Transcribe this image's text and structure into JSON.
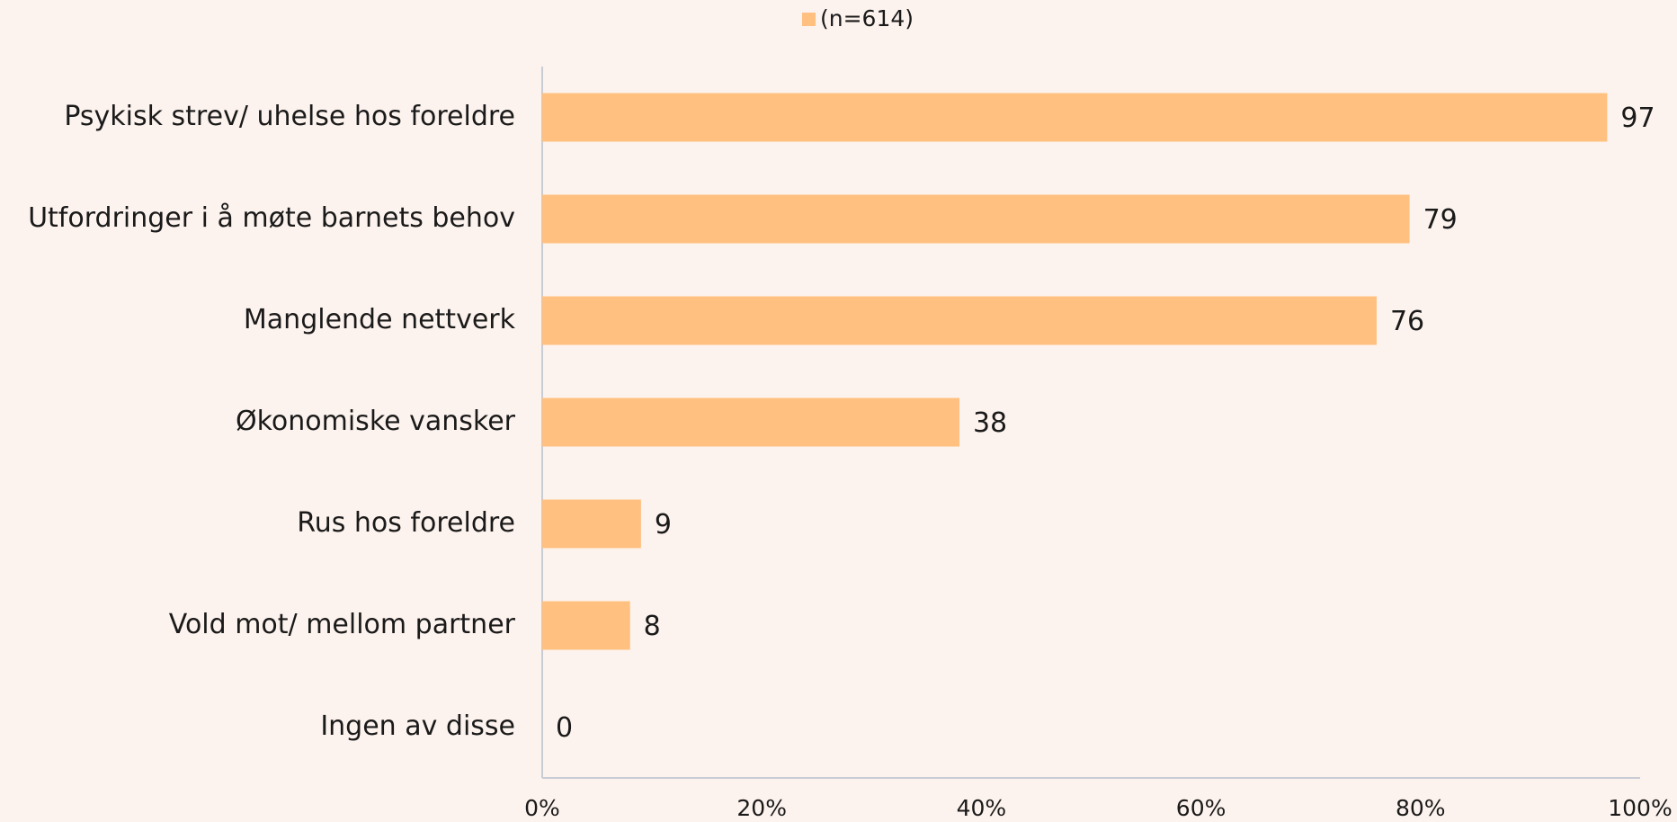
{
  "chart_data": {
    "type": "bar",
    "orientation": "horizontal",
    "categories": [
      "Psykisk strev/ uhelse hos foreldre",
      "Utfordringer i å møte barnets behov",
      "Manglende nettverk",
      "Økonomiske vansker",
      "Rus hos foreldre",
      "Vold mot/ mellom partner",
      "Ingen av disse"
    ],
    "series": [
      {
        "name": "(n=614)",
        "color": "#ffc080",
        "values": [
          97,
          79,
          76,
          38,
          9,
          8,
          0
        ]
      }
    ],
    "xlim": [
      0,
      100
    ],
    "xticks": [
      {
        "value": 0,
        "label": "0%"
      },
      {
        "value": 20,
        "label": "20%"
      },
      {
        "value": 40,
        "label": "40%"
      },
      {
        "value": 60,
        "label": "60%"
      },
      {
        "value": 80,
        "label": "80%"
      },
      {
        "value": 100,
        "label": "100%"
      }
    ],
    "grid": false,
    "legend": "top"
  }
}
